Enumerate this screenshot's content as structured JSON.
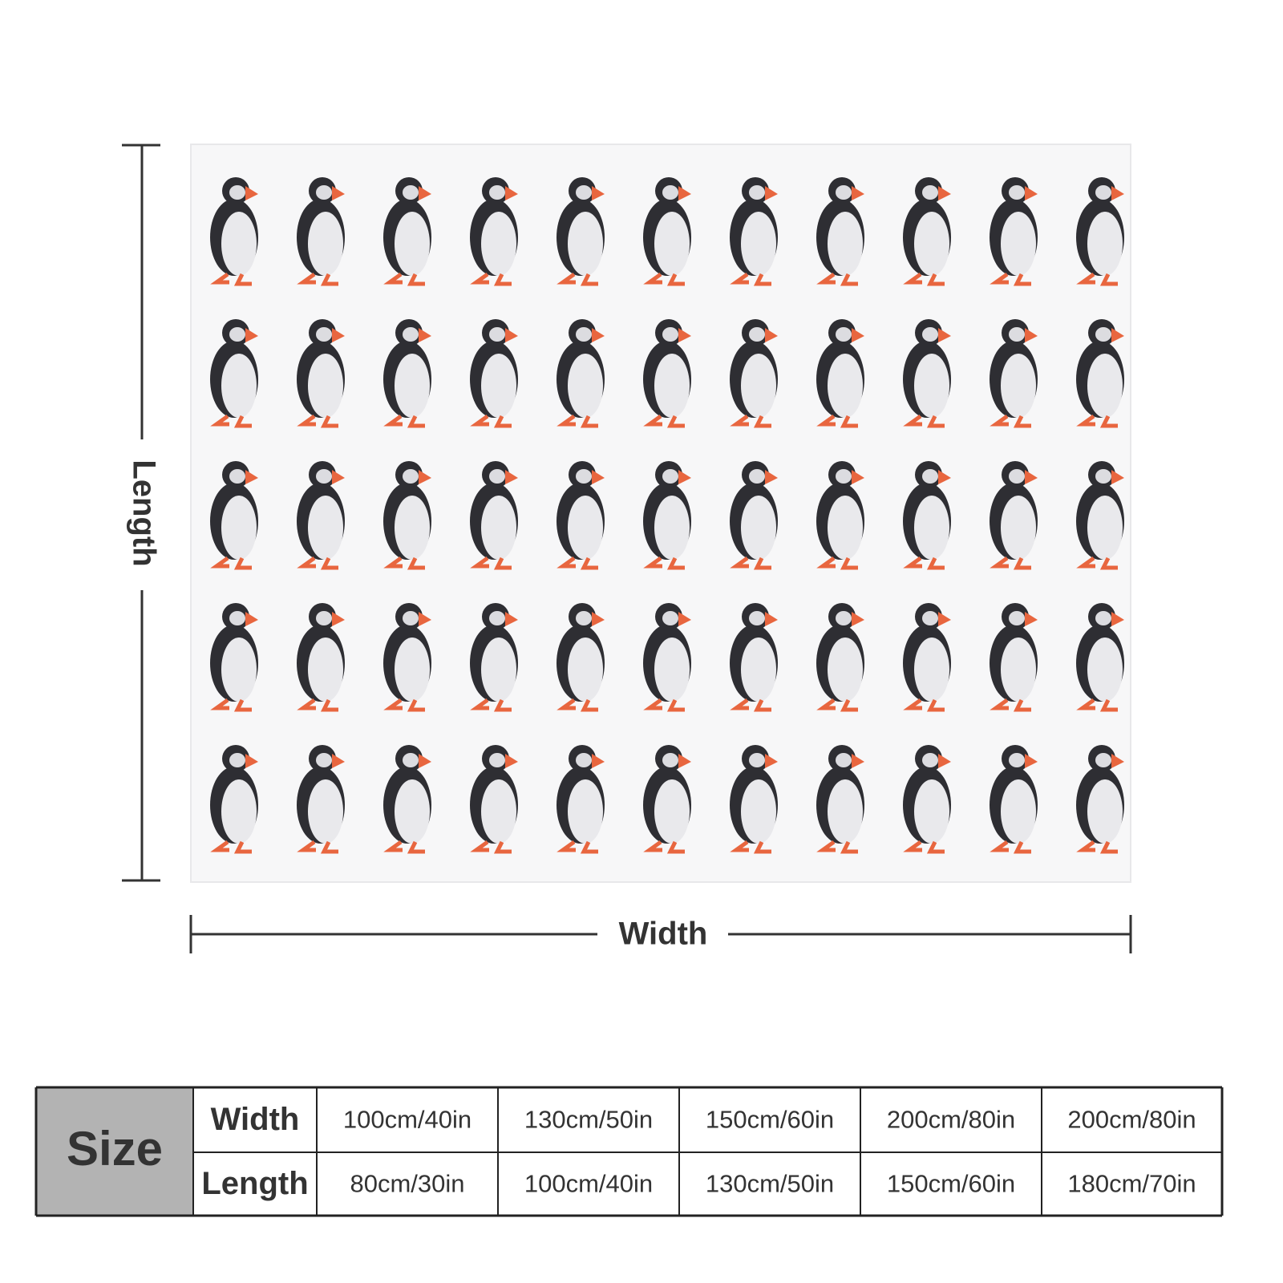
{
  "dimensions": {
    "length": "Length",
    "width": "Width"
  },
  "size_table": {
    "header": "Size",
    "rows": [
      {
        "label": "Width",
        "cells": [
          "100cm/40in",
          "130cm/50in",
          "150cm/60in",
          "200cm/80in",
          "200cm/80in"
        ]
      },
      {
        "label": "Length",
        "cells": [
          "80cm/30in",
          "100cm/40in",
          "130cm/50in",
          "150cm/60in",
          "180cm/70in"
        ]
      }
    ]
  }
}
